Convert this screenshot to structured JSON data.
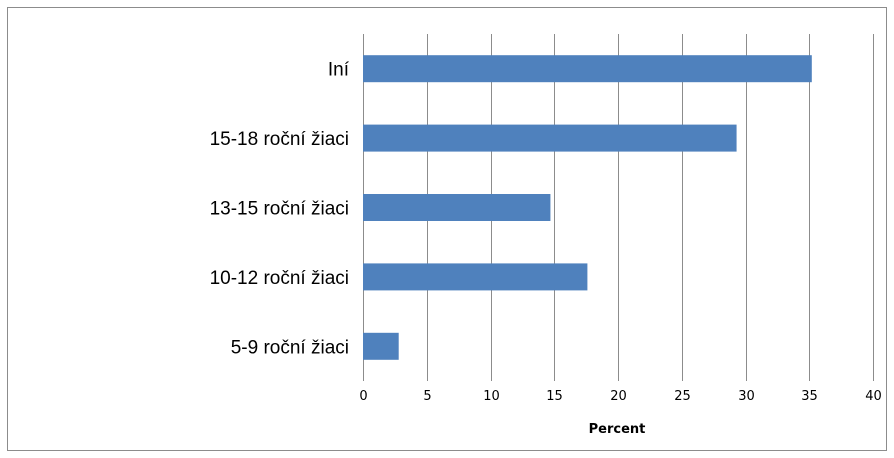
{
  "chart_data": {
    "type": "bar",
    "orientation": "horizontal",
    "categories": [
      "Iní",
      "15-18 roční žiaci",
      "13-15 roční žiaci",
      "10-12 roční žiaci",
      "5-9 roční žiaci"
    ],
    "values": [
      35.2,
      29.3,
      14.7,
      17.6,
      2.8
    ],
    "title": "",
    "xlabel": "Percent",
    "ylabel": "",
    "xlim": [
      0,
      40
    ],
    "xticks": [
      "0",
      "5",
      "10",
      "15",
      "20",
      "25",
      "30",
      "35",
      "40"
    ],
    "grid": true,
    "legend": "none",
    "bar_color": "#4f81bd",
    "grid_color": "#8c8c8c"
  }
}
